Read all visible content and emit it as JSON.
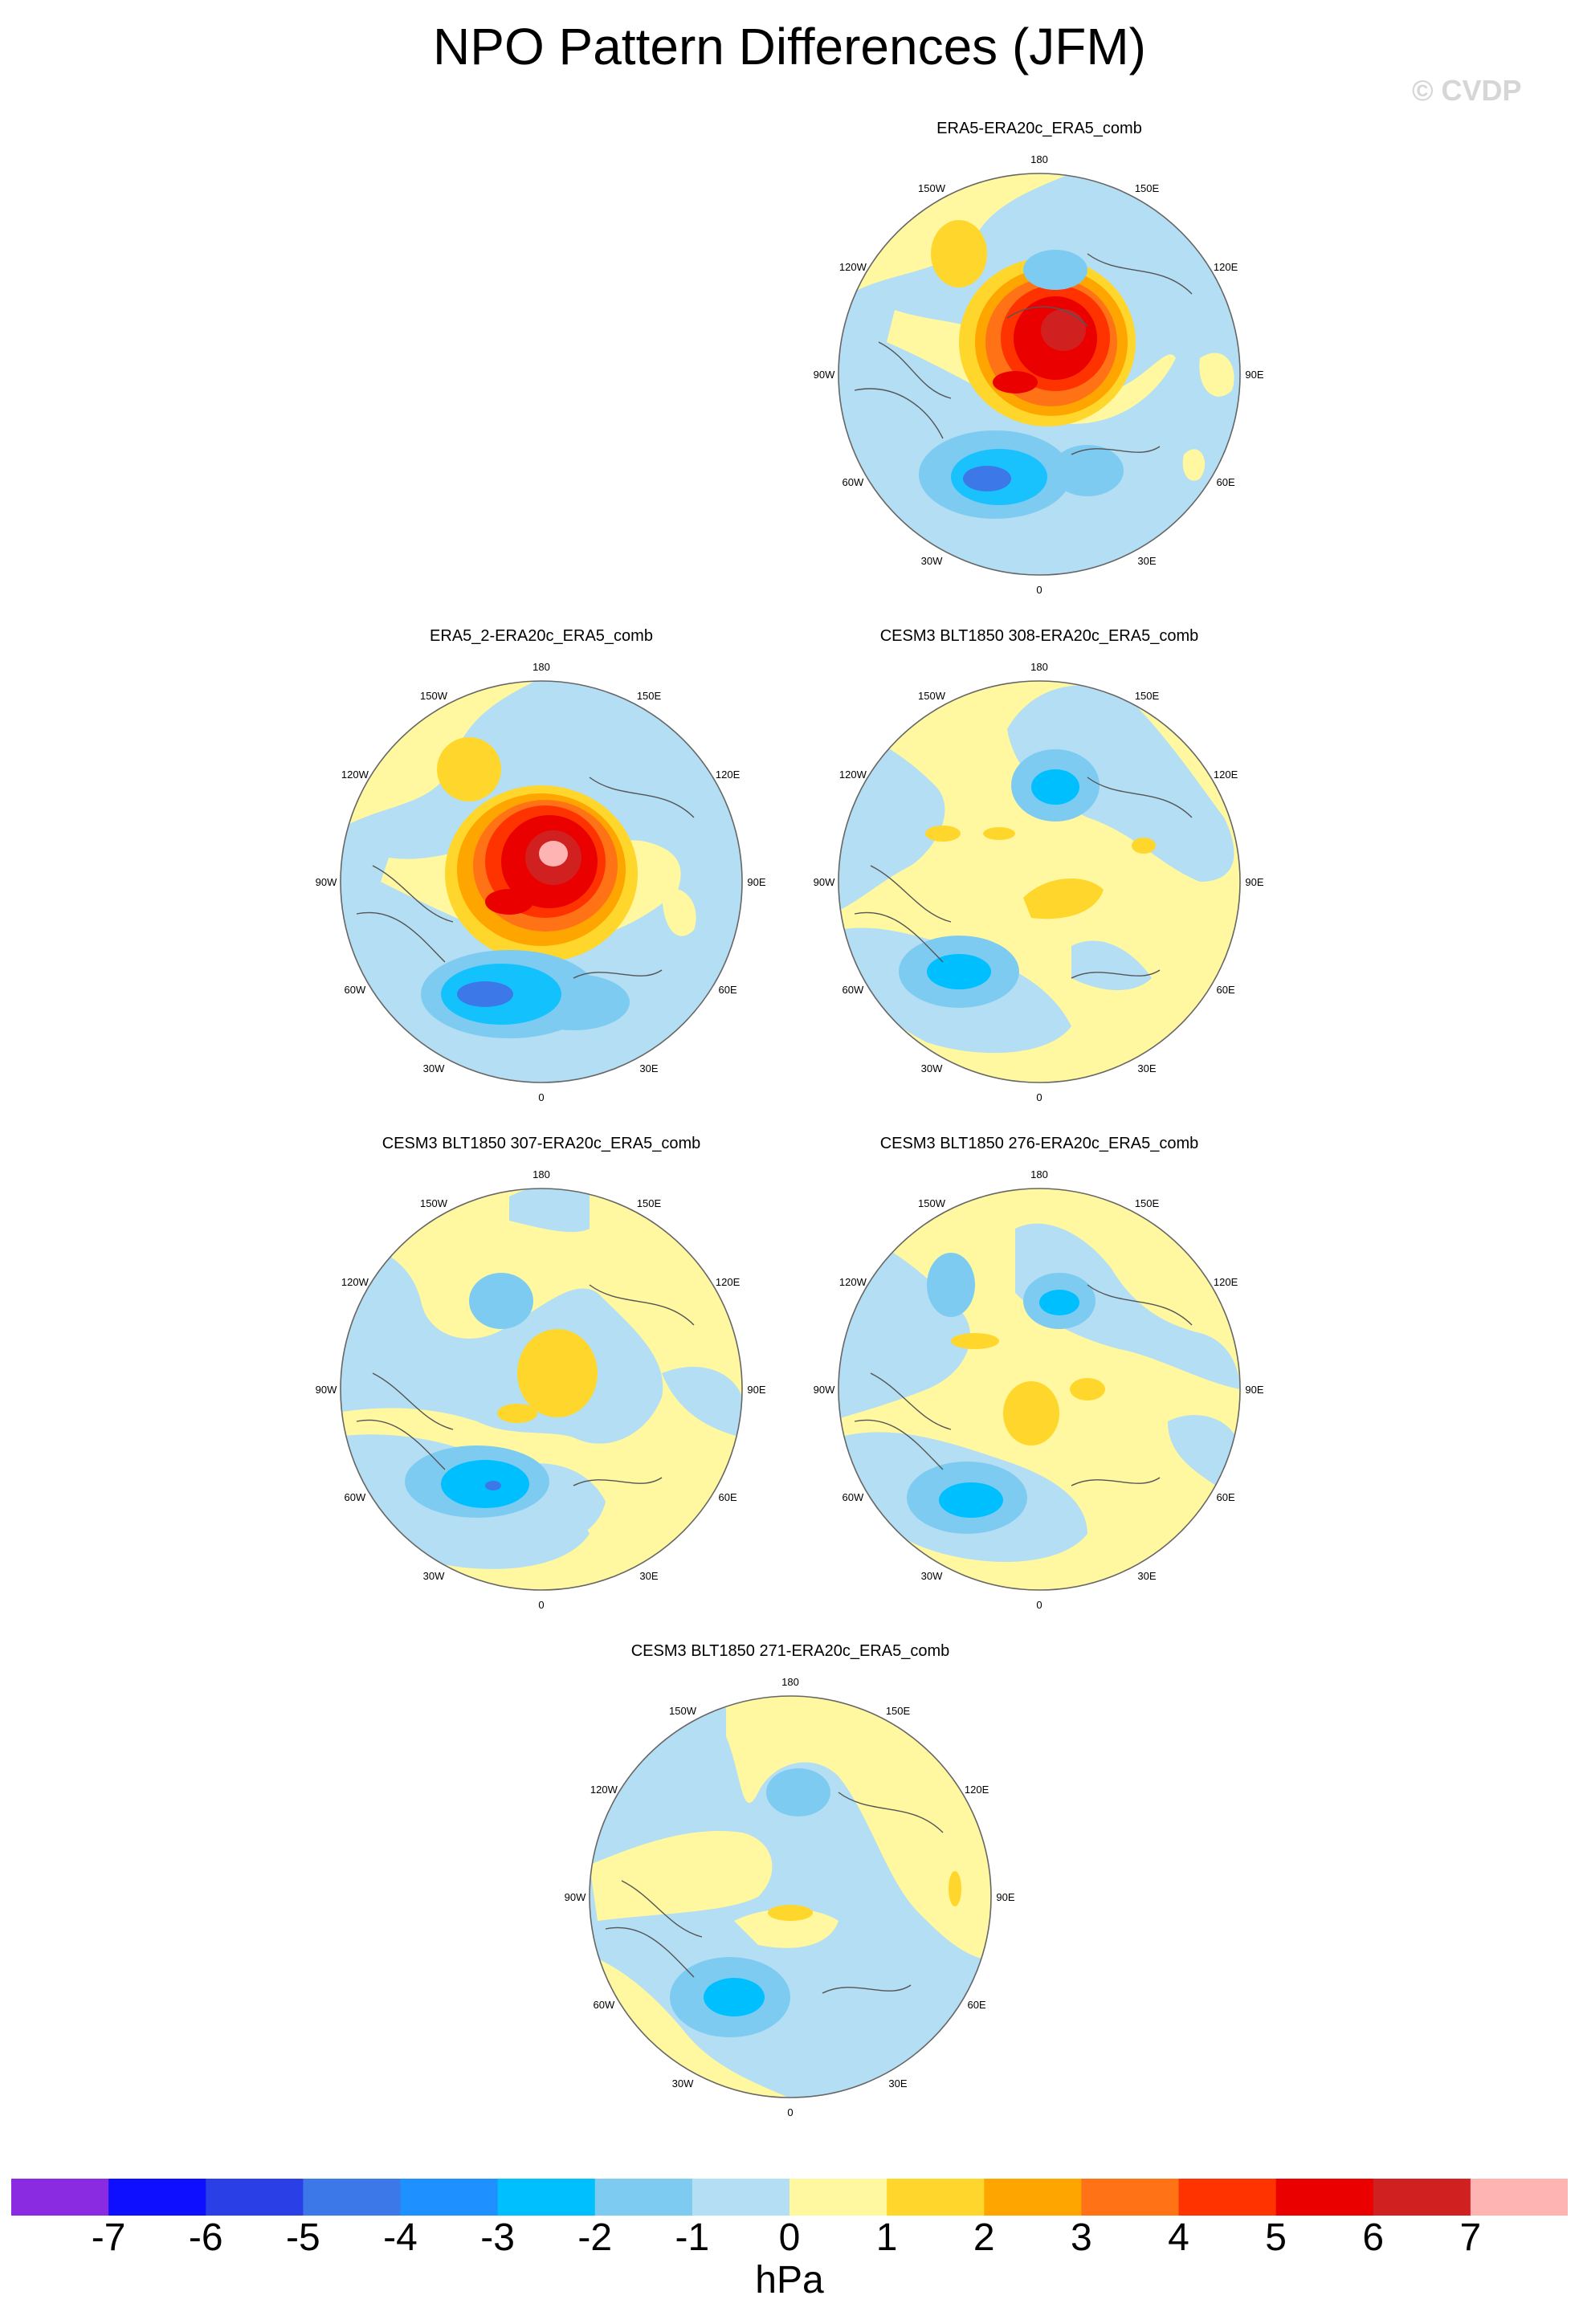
{
  "title": "NPO Pattern Differences (JFM)",
  "watermark": "© CVDP",
  "lon_labels": [
    "180",
    "150E",
    "120E",
    "90E",
    "60E",
    "30E",
    "0",
    "30W",
    "60W",
    "90W",
    "120W",
    "150W"
  ],
  "panels": [
    {
      "id": "p1",
      "title": "ERA5-ERA20c_ERA5_comb",
      "peak_positive_hPa": 6.5,
      "peak_negative_hPa": -5,
      "dominant": "strong positive over Arctic / N. Siberia, negative North Atlantic"
    },
    {
      "id": "p2",
      "title": "ERA5_2-ERA20c_ERA5_comb",
      "peak_positive_hPa": 7.5,
      "peak_negative_hPa": -5,
      "dominant": "strong positive over Arctic, negative North Atlantic"
    },
    {
      "id": "p3",
      "title": "CESM3 BLT1850 308-ERA20c_ERA5_comb",
      "peak_positive_hPa": 2,
      "peak_negative_hPa": -4,
      "dominant": "weak positive over Arctic, negative North Atlantic and North Pacific"
    },
    {
      "id": "p4",
      "title": "CESM3 BLT1850 307-ERA20c_ERA5_comb",
      "peak_positive_hPa": 2,
      "peak_negative_hPa": -5,
      "dominant": "weak positive over Arctic, negative North Atlantic"
    },
    {
      "id": "p5",
      "title": "CESM3 BLT1850 276-ERA20c_ERA5_comb",
      "peak_positive_hPa": 2,
      "peak_negative_hPa": -4,
      "dominant": "weak positive over Arctic, negative North Atlantic and North Pacific"
    },
    {
      "id": "p6",
      "title": "CESM3 BLT1850 271-ERA20c_ERA5_comb",
      "peak_positive_hPa": 2,
      "peak_negative_hPa": -4,
      "dominant": "weak positive over Arctic, negative North Atlantic"
    }
  ],
  "colorbar": {
    "units": "hPa",
    "labels": [
      "-7",
      "-6",
      "-5",
      "-4",
      "-3",
      "-2",
      "-1",
      "0",
      "1",
      "2",
      "3",
      "4",
      "5",
      "6",
      "7"
    ],
    "colors": [
      "#8a2be2",
      "#0f0fff",
      "#2b3fe6",
      "#3c78e8",
      "#1e90ff",
      "#00bfff",
      "#7ecbf2",
      "#b3def3",
      "#fff8a0",
      "#ffd72c",
      "#ffa500",
      "#ff7316",
      "#ff3300",
      "#eb0000",
      "#d02020",
      "#ffb4b4"
    ]
  },
  "contour_colors": {
    "neg5": "#2b3fe6",
    "neg4": "#3c78e8",
    "neg3": "#1e90ff",
    "neg2": "#00bfff",
    "neg1": "#7ecbf2",
    "neg0": "#b3def3",
    "pos0": "#fff8a0",
    "pos1": "#ffd72c",
    "pos2": "#ffa500",
    "pos3": "#ff7316",
    "pos4": "#ff3300",
    "pos5": "#eb0000",
    "pos6": "#d02020",
    "pos7": "#ffb4b4",
    "coast": "#555555",
    "rim": "#666666"
  }
}
